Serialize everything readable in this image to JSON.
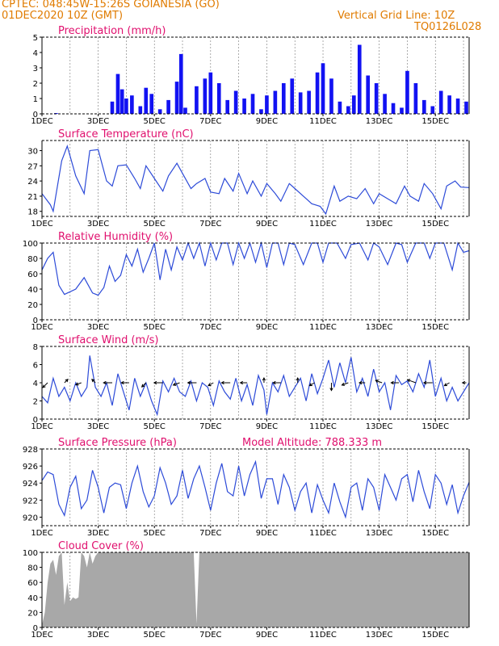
{
  "header": {
    "line1": "CPTEC:   048:45W-15:26S   GOIANESIA (GO)",
    "line2": "01DEC2020 10Z (GMT)",
    "grid_note": "Vertical Grid Line: 10Z",
    "code": "TQ0126L028"
  },
  "model_altitude": "Model Altitude: 788.333 m",
  "colors": {
    "header": "#e07b00",
    "title": "#e0106e",
    "line": "#2d4bd8",
    "bar": "#1212f2",
    "cloud": "#a8a8a8",
    "arrow": "#000000"
  },
  "chart_data": [
    {
      "type": "bar",
      "title": "Precipitation (mm/h)",
      "ylim": [
        0,
        5
      ],
      "yticks": [
        0,
        1,
        2,
        3,
        4,
        5
      ],
      "xlim": [
        1,
        16.2
      ],
      "xticks": [
        "1DEC",
        "3DEC",
        "5DEC",
        "7DEC",
        "9DEC",
        "11DEC",
        "13DEC",
        "15DEC"
      ],
      "x": [
        1.5,
        3.5,
        3.7,
        3.85,
        4.0,
        4.2,
        4.5,
        4.7,
        4.9,
        5.2,
        5.5,
        5.8,
        5.95,
        6.1,
        6.5,
        6.8,
        7.0,
        7.3,
        7.6,
        7.9,
        8.2,
        8.5,
        8.8,
        9.0,
        9.3,
        9.6,
        9.9,
        10.2,
        10.5,
        10.8,
        11.0,
        11.3,
        11.6,
        11.9,
        12.1,
        12.3,
        12.6,
        12.9,
        13.2,
        13.5,
        13.8,
        14.0,
        14.3,
        14.6,
        14.9,
        15.2,
        15.5,
        15.8,
        16.1
      ],
      "values": [
        0.05,
        0.8,
        2.6,
        1.6,
        1.0,
        1.2,
        0.5,
        1.7,
        1.3,
        0.3,
        0.9,
        2.1,
        3.9,
        0.4,
        1.8,
        2.3,
        2.7,
        2.0,
        0.9,
        1.5,
        1.0,
        1.3,
        0.3,
        1.2,
        1.5,
        2.0,
        2.3,
        1.4,
        1.5,
        2.7,
        3.3,
        2.3,
        0.8,
        0.5,
        1.2,
        4.5,
        2.5,
        2.0,
        1.3,
        0.7,
        0.4,
        2.8,
        2.0,
        0.9,
        0.5,
        1.5,
        1.2,
        1.0,
        0.8
      ]
    },
    {
      "type": "line",
      "title": "Surface Temperature (nC)",
      "ylim": [
        17,
        32
      ],
      "yticks": [
        18,
        21,
        24,
        27,
        30
      ],
      "xlim": [
        1,
        16.2
      ],
      "xticks": [
        "1DEC",
        "3DEC",
        "5DEC",
        "7DEC",
        "9DEC",
        "11DEC",
        "13DEC",
        "15DEC"
      ],
      "x": [
        1.0,
        1.3,
        1.4,
        1.7,
        1.9,
        2.2,
        2.5,
        2.7,
        3.0,
        3.3,
        3.5,
        3.7,
        4.0,
        4.3,
        4.5,
        4.7,
        5.0,
        5.3,
        5.5,
        5.8,
        6.0,
        6.3,
        6.5,
        6.8,
        7.0,
        7.3,
        7.5,
        7.8,
        8.0,
        8.3,
        8.5,
        8.8,
        9.0,
        9.3,
        9.5,
        9.8,
        10.0,
        10.3,
        10.6,
        10.9,
        11.1,
        11.4,
        11.6,
        11.9,
        12.2,
        12.5,
        12.8,
        13.0,
        13.3,
        13.6,
        13.9,
        14.1,
        14.4,
        14.6,
        14.9,
        15.2,
        15.4,
        15.7,
        15.9,
        16.2
      ],
      "values": [
        21.5,
        19.3,
        18.0,
        28.0,
        30.9,
        25.0,
        21.5,
        30.0,
        30.2,
        24.0,
        23.0,
        27.0,
        27.2,
        24.5,
        22.5,
        27.0,
        24.5,
        22.0,
        25.0,
        27.5,
        25.5,
        22.5,
        23.5,
        24.5,
        21.8,
        21.5,
        24.5,
        22.0,
        25.5,
        21.5,
        24.0,
        21.0,
        23.5,
        21.5,
        20.0,
        23.5,
        22.5,
        21.0,
        19.5,
        19.0,
        17.5,
        23.0,
        20.0,
        21.0,
        20.5,
        22.5,
        19.5,
        21.5,
        20.5,
        19.5,
        23.0,
        21.0,
        20.0,
        23.5,
        21.5,
        18.5,
        23.0,
        24.0,
        22.8,
        22.7
      ]
    },
    {
      "type": "line",
      "title": "Relative Humidity (%)",
      "ylim": [
        0,
        100
      ],
      "yticks": [
        0,
        20,
        40,
        60,
        80,
        100
      ],
      "xlim": [
        1,
        16.2
      ],
      "xticks": [
        "1DEC",
        "3DEC",
        "5DEC",
        "7DEC",
        "9DEC",
        "11DEC",
        "13DEC",
        "15DEC"
      ],
      "x": [
        1.0,
        1.2,
        1.4,
        1.6,
        1.8,
        2.2,
        2.5,
        2.8,
        3.0,
        3.2,
        3.4,
        3.6,
        3.8,
        4.0,
        4.2,
        4.4,
        4.6,
        4.8,
        5.0,
        5.2,
        5.4,
        5.6,
        5.8,
        6.0,
        6.2,
        6.4,
        6.6,
        6.8,
        7.0,
        7.2,
        7.4,
        7.6,
        7.8,
        8.0,
        8.2,
        8.4,
        8.6,
        8.8,
        9.0,
        9.2,
        9.4,
        9.6,
        9.8,
        10.0,
        10.3,
        10.6,
        10.8,
        11.0,
        11.2,
        11.5,
        11.8,
        12.0,
        12.3,
        12.6,
        12.8,
        13.0,
        13.3,
        13.6,
        13.8,
        14.0,
        14.3,
        14.6,
        14.8,
        15.0,
        15.3,
        15.6,
        15.8,
        16.0,
        16.2
      ],
      "values": [
        65,
        80,
        88,
        45,
        33,
        40,
        55,
        35,
        32,
        42,
        70,
        50,
        58,
        85,
        70,
        92,
        62,
        80,
        100,
        52,
        92,
        65,
        95,
        78,
        100,
        80,
        100,
        70,
        100,
        78,
        100,
        100,
        72,
        100,
        80,
        100,
        75,
        100,
        68,
        100,
        100,
        72,
        100,
        98,
        72,
        100,
        100,
        75,
        100,
        100,
        80,
        98,
        100,
        78,
        100,
        95,
        72,
        100,
        98,
        75,
        100,
        100,
        80,
        100,
        100,
        65,
        100,
        88,
        90
      ]
    },
    {
      "type": "line",
      "title": "Surface Wind (m/s)",
      "ylim": [
        0,
        8
      ],
      "yticks": [
        0,
        2,
        4,
        6,
        8
      ],
      "xlim": [
        1,
        16.2
      ],
      "xticks": [
        "1DEC",
        "3DEC",
        "5DEC",
        "7DEC",
        "9DEC",
        "11DEC",
        "13DEC",
        "15DEC"
      ],
      "x": [
        1.0,
        1.2,
        1.4,
        1.6,
        1.8,
        2.0,
        2.2,
        2.4,
        2.6,
        2.7,
        2.9,
        3.1,
        3.3,
        3.5,
        3.7,
        3.9,
        4.1,
        4.3,
        4.5,
        4.7,
        4.9,
        5.1,
        5.3,
        5.5,
        5.7,
        5.9,
        6.1,
        6.3,
        6.5,
        6.7,
        6.9,
        7.1,
        7.3,
        7.5,
        7.7,
        7.9,
        8.1,
        8.3,
        8.5,
        8.7,
        8.9,
        9.0,
        9.2,
        9.4,
        9.6,
        9.8,
        10.0,
        10.2,
        10.4,
        10.6,
        10.8,
        11.0,
        11.2,
        11.4,
        11.6,
        11.8,
        12.0,
        12.2,
        12.4,
        12.6,
        12.8,
        13.0,
        13.2,
        13.4,
        13.6,
        13.8,
        14.0,
        14.2,
        14.4,
        14.6,
        14.8,
        15.0,
        15.2,
        15.4,
        15.6,
        15.8,
        16.0,
        16.2
      ],
      "values": [
        2.5,
        1.8,
        4.5,
        2.5,
        3.5,
        2.0,
        4.0,
        2.5,
        3.5,
        7.0,
        3.5,
        2.5,
        4.0,
        1.5,
        5.0,
        3.0,
        1.0,
        4.5,
        2.5,
        4.0,
        2.0,
        0.5,
        4.2,
        3.0,
        4.5,
        3.0,
        2.5,
        4.2,
        2.0,
        4.0,
        3.5,
        1.5,
        4.2,
        3.0,
        2.2,
        4.5,
        2.0,
        3.8,
        1.5,
        4.8,
        3.2,
        0.5,
        4.0,
        3.0,
        4.8,
        2.5,
        3.5,
        4.5,
        2.0,
        5.0,
        2.8,
        4.5,
        6.5,
        3.5,
        6.2,
        4.0,
        6.8,
        3.0,
        4.5,
        2.5,
        5.5,
        3.0,
        4.0,
        1.0,
        4.8,
        3.8,
        4.2,
        3.0,
        5.0,
        3.5,
        6.5,
        2.5,
        4.5,
        2.0,
        3.5,
        2.0,
        3.0,
        4.0
      ],
      "arrows": {
        "x": [
          1.2,
          1.8,
          2.4,
          2.9,
          3.5,
          4.1,
          4.7,
          5.3,
          5.9,
          6.5,
          7.1,
          7.7,
          8.3,
          8.9,
          9.5,
          10.1,
          10.7,
          11.3,
          11.9,
          12.5,
          13.1,
          13.7,
          14.3,
          14.9,
          15.5,
          16.1
        ],
        "dir_deg": [
          225,
          45,
          200,
          135,
          180,
          180,
          225,
          180,
          200,
          180,
          210,
          180,
          180,
          90,
          180,
          90,
          210,
          270,
          200,
          180,
          160,
          180,
          160,
          180,
          210,
          180
        ],
        "len": [
          0.7,
          0.5,
          0.6,
          0.5,
          0.9,
          0.8,
          0.6,
          0.9,
          0.7,
          0.9,
          0.6,
          0.9,
          0.7,
          0.5,
          0.8,
          0.5,
          0.6,
          0.8,
          0.7,
          0.6,
          0.7,
          0.8,
          0.9,
          0.9,
          0.6,
          0.4
        ]
      }
    },
    {
      "type": "line",
      "title": "Surface Pressure (hPa)",
      "ylim": [
        919,
        928
      ],
      "yticks": [
        920,
        922,
        924,
        926,
        928
      ],
      "xlim": [
        1,
        16.2
      ],
      "xticks": [
        "1DEC",
        "3DEC",
        "5DEC",
        "7DEC",
        "9DEC",
        "11DEC",
        "13DEC",
        "15DEC"
      ],
      "x": [
        1.0,
        1.2,
        1.4,
        1.6,
        1.8,
        2.0,
        2.2,
        2.4,
        2.6,
        2.8,
        3.0,
        3.2,
        3.4,
        3.6,
        3.8,
        4.0,
        4.2,
        4.4,
        4.6,
        4.8,
        5.0,
        5.2,
        5.4,
        5.6,
        5.8,
        6.0,
        6.2,
        6.4,
        6.6,
        6.8,
        7.0,
        7.2,
        7.4,
        7.6,
        7.8,
        8.0,
        8.2,
        8.4,
        8.6,
        8.8,
        9.0,
        9.2,
        9.4,
        9.6,
        9.8,
        10.0,
        10.2,
        10.4,
        10.6,
        10.8,
        11.0,
        11.2,
        11.4,
        11.6,
        11.8,
        12.0,
        12.2,
        12.4,
        12.6,
        12.8,
        13.0,
        13.2,
        13.4,
        13.6,
        13.8,
        14.0,
        14.2,
        14.4,
        14.6,
        14.8,
        15.0,
        15.2,
        15.4,
        15.6,
        15.8,
        16.0,
        16.2
      ],
      "values": [
        924.3,
        925.3,
        925.0,
        921.5,
        920.2,
        923.5,
        924.8,
        921.0,
        922.0,
        925.5,
        923.5,
        920.5,
        923.5,
        924.0,
        923.8,
        921.0,
        924.0,
        926.0,
        923.0,
        921.2,
        922.5,
        925.8,
        924.0,
        921.5,
        922.5,
        925.5,
        922.2,
        924.5,
        926.0,
        923.5,
        920.8,
        924.0,
        926.3,
        923.0,
        922.5,
        926.0,
        922.5,
        925.0,
        926.5,
        922.2,
        924.5,
        924.5,
        921.5,
        925.0,
        923.5,
        920.8,
        923.0,
        924.0,
        920.5,
        923.8,
        922.0,
        920.5,
        924.0,
        921.8,
        920.0,
        923.5,
        924.0,
        920.8,
        924.5,
        923.5,
        920.8,
        925.0,
        923.5,
        922.0,
        924.5,
        925.0,
        921.8,
        925.5,
        923.0,
        921.0,
        925.0,
        924.0,
        921.5,
        923.8,
        920.5,
        922.5,
        924.1
      ]
    },
    {
      "type": "area",
      "title": "Cloud Cover (%)",
      "ylim": [
        0,
        100
      ],
      "yticks": [
        0,
        20,
        40,
        60,
        80,
        100
      ],
      "xlim": [
        1,
        16.2
      ],
      "xticks": [
        "1DEC",
        "3DEC",
        "5DEC",
        "7DEC",
        "9DEC",
        "11DEC",
        "13DEC",
        "15DEC"
      ],
      "x": [
        1.0,
        1.1,
        1.2,
        1.3,
        1.4,
        1.5,
        1.6,
        1.7,
        1.8,
        1.9,
        2.0,
        2.1,
        2.2,
        2.3,
        2.4,
        2.5,
        2.6,
        2.7,
        2.8,
        2.9,
        3.0,
        6.4,
        6.5,
        6.6,
        16.2
      ],
      "values": [
        3,
        20,
        60,
        85,
        90,
        70,
        95,
        100,
        30,
        60,
        35,
        40,
        38,
        40,
        100,
        95,
        80,
        100,
        85,
        95,
        100,
        100,
        5,
        100,
        100
      ]
    }
  ]
}
